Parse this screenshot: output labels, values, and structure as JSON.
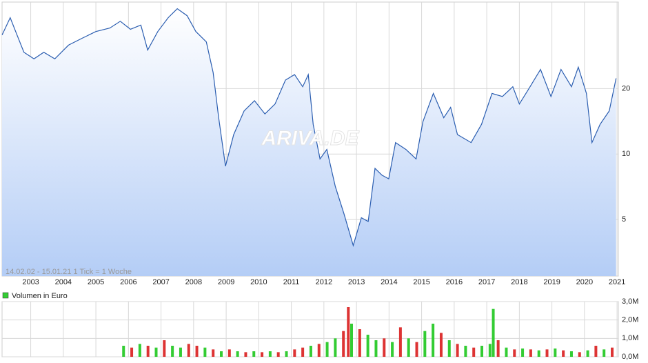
{
  "chart_data": [
    {
      "type": "line",
      "log_scale": true,
      "grid": true,
      "annotation": "14.02.02 - 15.01.21   1 Tick = 1 Woche",
      "watermark": "ARIVA.DE",
      "xlim": [
        2002.12,
        2021.04
      ],
      "xticks": [
        2003,
        2004,
        2005,
        2006,
        2007,
        2008,
        2009,
        2010,
        2011,
        2012,
        2013,
        2014,
        2015,
        2016,
        2017,
        2018,
        2019,
        2020,
        2021
      ],
      "ylim": [
        2.75,
        50
      ],
      "yticks": [
        5,
        10,
        20
      ],
      "x": [
        2002.12,
        2002.37,
        2002.58,
        2002.79,
        2003.1,
        2003.4,
        2003.74,
        2004.16,
        2004.58,
        2005.0,
        2005.43,
        2005.75,
        2006.06,
        2006.38,
        2006.59,
        2006.9,
        2007.22,
        2007.5,
        2007.8,
        2008.07,
        2008.39,
        2008.6,
        2008.77,
        2008.98,
        2009.23,
        2009.55,
        2009.87,
        2010.19,
        2010.5,
        2010.82,
        2011.1,
        2011.35,
        2011.52,
        2011.67,
        2011.88,
        2012.09,
        2012.35,
        2012.62,
        2012.9,
        2013.15,
        2013.36,
        2013.57,
        2013.78,
        2013.99,
        2014.2,
        2014.52,
        2014.83,
        2015.04,
        2015.36,
        2015.68,
        2015.89,
        2016.1,
        2016.52,
        2016.84,
        2017.16,
        2017.48,
        2017.8,
        2018.0,
        2018.33,
        2018.65,
        2018.97,
        2019.28,
        2019.6,
        2019.81,
        2020.06,
        2020.23,
        2020.48,
        2020.76,
        2020.97
      ],
      "series": [
        {
          "color": "#2a5db0",
          "values": [
            35.3,
            42.4,
            35.3,
            29.4,
            27.4,
            29.4,
            27.4,
            31.7,
            34.1,
            36.6,
            38.0,
            40.8,
            37.5,
            39.2,
            30.1,
            36.6,
            42.4,
            46.6,
            43.3,
            36.6,
            32.8,
            23.7,
            14.7,
            8.8,
            12.3,
            15.8,
            17.6,
            15.3,
            17.0,
            21.9,
            23.2,
            20.4,
            23.2,
            13.7,
            9.5,
            10.5,
            7.1,
            5.3,
            3.8,
            5.1,
            4.9,
            8.6,
            8.0,
            7.7,
            11.3,
            10.5,
            9.5,
            14.1,
            19.0,
            14.7,
            16.4,
            12.3,
            11.3,
            13.7,
            19.0,
            18.4,
            20.4,
            17.0,
            20.4,
            24.5,
            18.4,
            24.5,
            20.4,
            25.1,
            19.0,
            11.3,
            13.7,
            15.8,
            22.3
          ]
        }
      ]
    },
    {
      "type": "bar",
      "legend": "Volumen in Euro",
      "grid": true,
      "xlim": [
        2002.12,
        2021.04
      ],
      "ylim": [
        0,
        3000000
      ],
      "yticks": [
        {
          "value": 0,
          "label": "0,0M"
        },
        {
          "value": 1000000,
          "label": "1,0M"
        },
        {
          "value": 2000000,
          "label": "2,0M"
        },
        {
          "value": 3000000,
          "label": "3,0M"
        }
      ],
      "x": [
        2005.85,
        2006.1,
        2006.35,
        2006.6,
        2006.85,
        2007.1,
        2007.35,
        2007.6,
        2007.85,
        2008.1,
        2008.35,
        2008.6,
        2008.85,
        2009.1,
        2009.35,
        2009.6,
        2009.85,
        2010.1,
        2010.35,
        2010.6,
        2010.85,
        2011.1,
        2011.35,
        2011.6,
        2011.85,
        2012.1,
        2012.35,
        2012.6,
        2012.75,
        2012.85,
        2013.1,
        2013.35,
        2013.6,
        2013.85,
        2014.1,
        2014.35,
        2014.6,
        2014.85,
        2015.1,
        2015.35,
        2015.6,
        2015.85,
        2016.1,
        2016.35,
        2016.6,
        2016.85,
        2017.1,
        2017.2,
        2017.35,
        2017.6,
        2017.85,
        2018.1,
        2018.35,
        2018.6,
        2018.85,
        2019.1,
        2019.35,
        2019.6,
        2019.85,
        2020.1,
        2020.35,
        2020.6,
        2020.85
      ],
      "colors": [
        "#3c3",
        "#d33",
        "#3c3",
        "#d33",
        "#3c3",
        "#d33",
        "#3c3",
        "#3c3",
        "#d33",
        "#d33",
        "#3c3",
        "#d33",
        "#3c3",
        "#d33",
        "#3c3",
        "#d33",
        "#3c3",
        "#d33",
        "#3c3",
        "#d33",
        "#3c3",
        "#d33",
        "#d33",
        "#3c3",
        "#d33",
        "#3c3",
        "#3c3",
        "#d33",
        "#d33",
        "#3c3",
        "#d33",
        "#3c3",
        "#3c3",
        "#d33",
        "#3c3",
        "#d33",
        "#3c3",
        "#d33",
        "#3c3",
        "#3c3",
        "#d33",
        "#3c3",
        "#d33",
        "#3c3",
        "#d33",
        "#3c3",
        "#3c3",
        "#3c3",
        "#d33",
        "#3c3",
        "#d33",
        "#3c3",
        "#d33",
        "#3c3",
        "#d33",
        "#3c3",
        "#d33",
        "#3c3",
        "#d33",
        "#3c3",
        "#d33",
        "#3c3",
        "#d33"
      ],
      "values": [
        600000,
        500000,
        700000,
        600000,
        500000,
        900000,
        600000,
        500000,
        700000,
        600000,
        500000,
        400000,
        300000,
        400000,
        300000,
        250000,
        300000,
        250000,
        300000,
        250000,
        300000,
        400000,
        500000,
        600000,
        700000,
        800000,
        1000000,
        1400000,
        2700000,
        1800000,
        1500000,
        1200000,
        900000,
        1000000,
        800000,
        1600000,
        1000000,
        800000,
        1400000,
        1800000,
        1300000,
        900000,
        700000,
        600000,
        500000,
        600000,
        700000,
        2600000,
        900000,
        500000,
        400000,
        450000,
        400000,
        350000,
        400000,
        450000,
        350000,
        300000,
        250000,
        350000,
        600000,
        400000,
        500000
      ]
    }
  ]
}
